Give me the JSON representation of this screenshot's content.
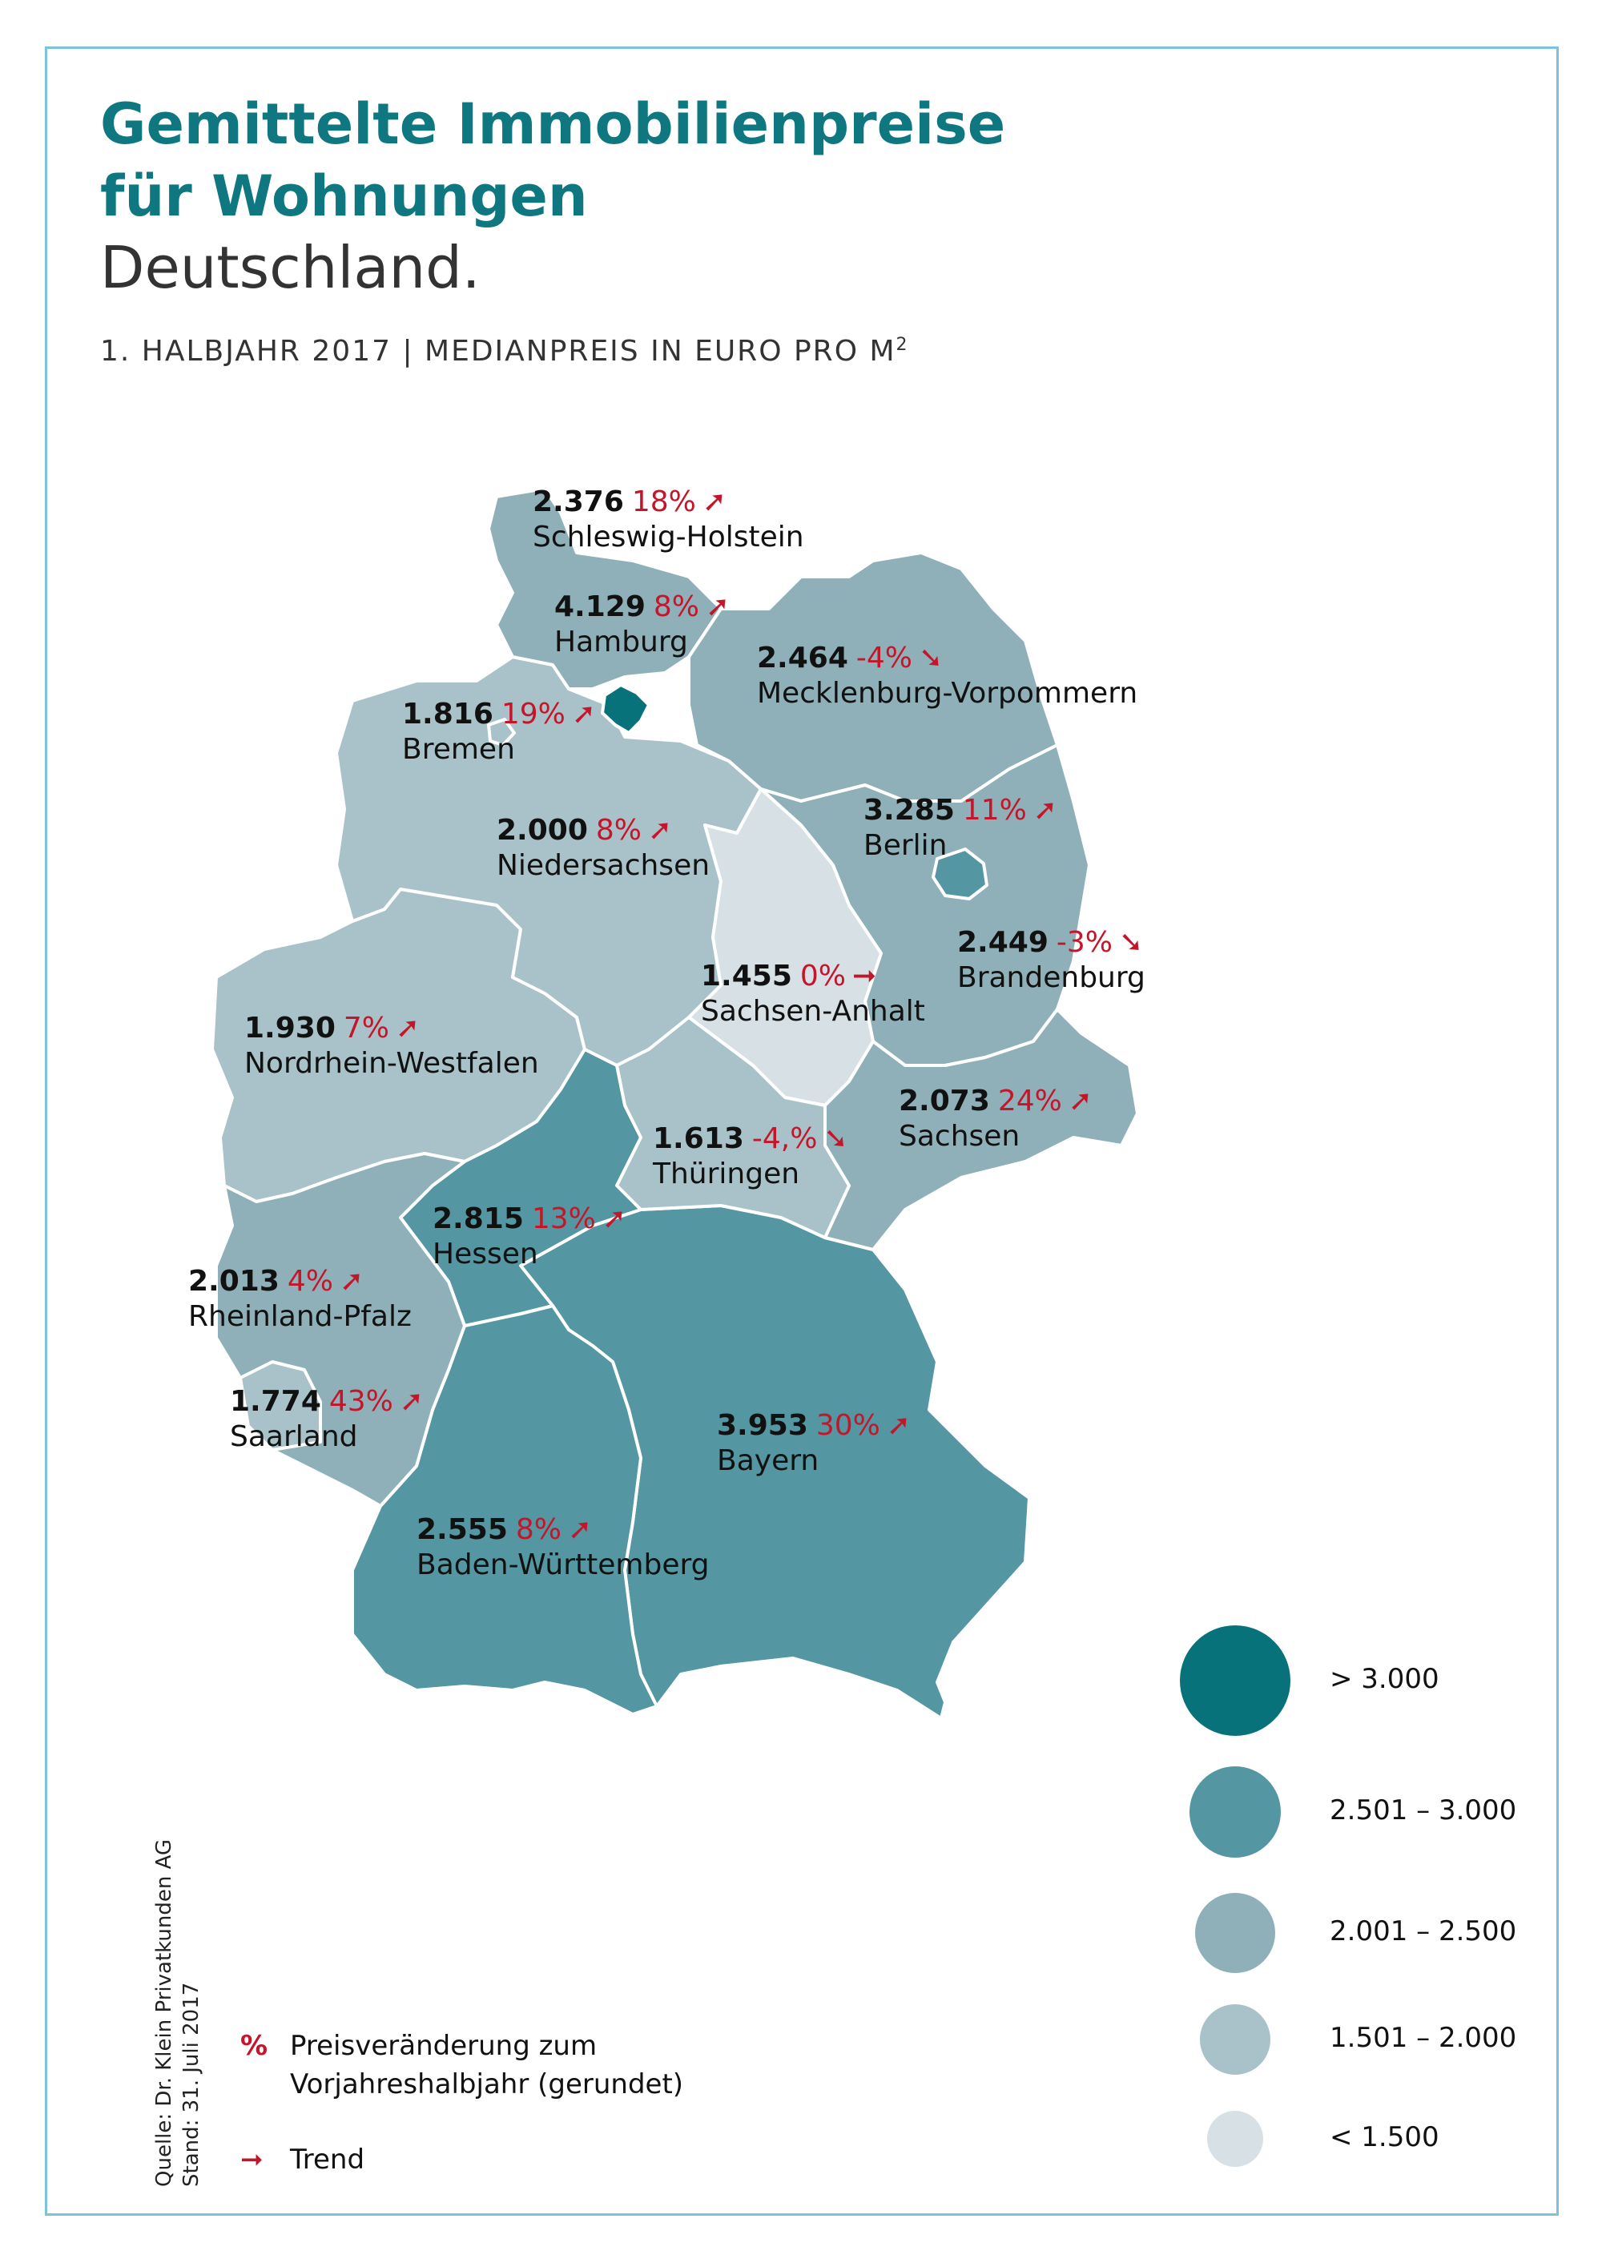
{
  "title_line1": "Gemittelte Immobilienpreise",
  "title_line2": "für Wohnungen",
  "subtitle": "Deutschland.",
  "meta_text": "1. HALBJAHR 2017 | MEDIANPREIS IN EURO PRO M",
  "meta_sup": "2",
  "colors": {
    "gt3000": "#08727a",
    "r2501_3000": "#5496a1",
    "r2001_2500": "#8fb0b8",
    "r1501_2000": "#a9c2c9",
    "lt1500": "#d7e1e5",
    "trend": "#c4162a"
  },
  "states": [
    {
      "id": "schleswig-holstein",
      "name": "Schleswig-Holstein",
      "price": "2.376",
      "change": "18%",
      "trend": "up"
    },
    {
      "id": "hamburg",
      "name": "Hamburg",
      "price": "4.129",
      "change": "8%",
      "trend": "up"
    },
    {
      "id": "mecklenburg-vorpommern",
      "name": "Mecklenburg-Vorpommern",
      "price": "2.464",
      "change": "-4%",
      "trend": "down"
    },
    {
      "id": "bremen",
      "name": "Bremen",
      "price": "1.816",
      "change": "19%",
      "trend": "up"
    },
    {
      "id": "berlin",
      "name": "Berlin",
      "price": "3.285",
      "change": "11%",
      "trend": "up"
    },
    {
      "id": "niedersachsen",
      "name": "Niedersachsen",
      "price": "2.000",
      "change": "8%",
      "trend": "up"
    },
    {
      "id": "brandenburg",
      "name": "Brandenburg",
      "price": "2.449",
      "change": "-3%",
      "trend": "down"
    },
    {
      "id": "sachsen-anhalt",
      "name": "Sachsen-Anhalt",
      "price": "1.455",
      "change": "0%",
      "trend": "flat"
    },
    {
      "id": "nordrhein-westfalen",
      "name": "Nordrhein-Westfalen",
      "price": "1.930",
      "change": "7%",
      "trend": "up"
    },
    {
      "id": "sachsen",
      "name": "Sachsen",
      "price": "2.073",
      "change": "24%",
      "trend": "up"
    },
    {
      "id": "thueringen",
      "name": "Thüringen",
      "price": "1.613",
      "change": "-4,%",
      "trend": "down"
    },
    {
      "id": "hessen",
      "name": "Hessen",
      "price": "2.815",
      "change": "13%",
      "trend": "up"
    },
    {
      "id": "rheinland-pfalz",
      "name": "Rheinland-Pfalz",
      "price": "2.013",
      "change": "4%",
      "trend": "up"
    },
    {
      "id": "saarland",
      "name": "Saarland",
      "price": "1.774",
      "change": "43%",
      "trend": "up"
    },
    {
      "id": "bayern",
      "name": "Bayern",
      "price": "3.953",
      "change": "30%",
      "trend": "up"
    },
    {
      "id": "baden-wuerttemberg",
      "name": "Baden-Württemberg",
      "price": "2.555",
      "change": "8%",
      "trend": "up"
    }
  ],
  "legend": [
    {
      "label": "> 3.000"
    },
    {
      "label": "2.501 – 3.000"
    },
    {
      "label": "2.001 – 2.500"
    },
    {
      "label": "1.501 – 2.000"
    },
    {
      "label": "< 1.500"
    }
  ],
  "key_percent_symbol": "%",
  "key_percent_line1": "Preisveränderung zum",
  "key_percent_line2": "Vorjahreshalbjahr (gerundet)",
  "key_trend_symbol": "➞",
  "key_trend_label": "Trend",
  "source_line1": "Quelle: Dr. Klein Privatkunden AG",
  "source_line2": "Stand: 31. Juli 2017",
  "arrows": {
    "up": "➚",
    "down": "➘",
    "flat": "➞"
  }
}
